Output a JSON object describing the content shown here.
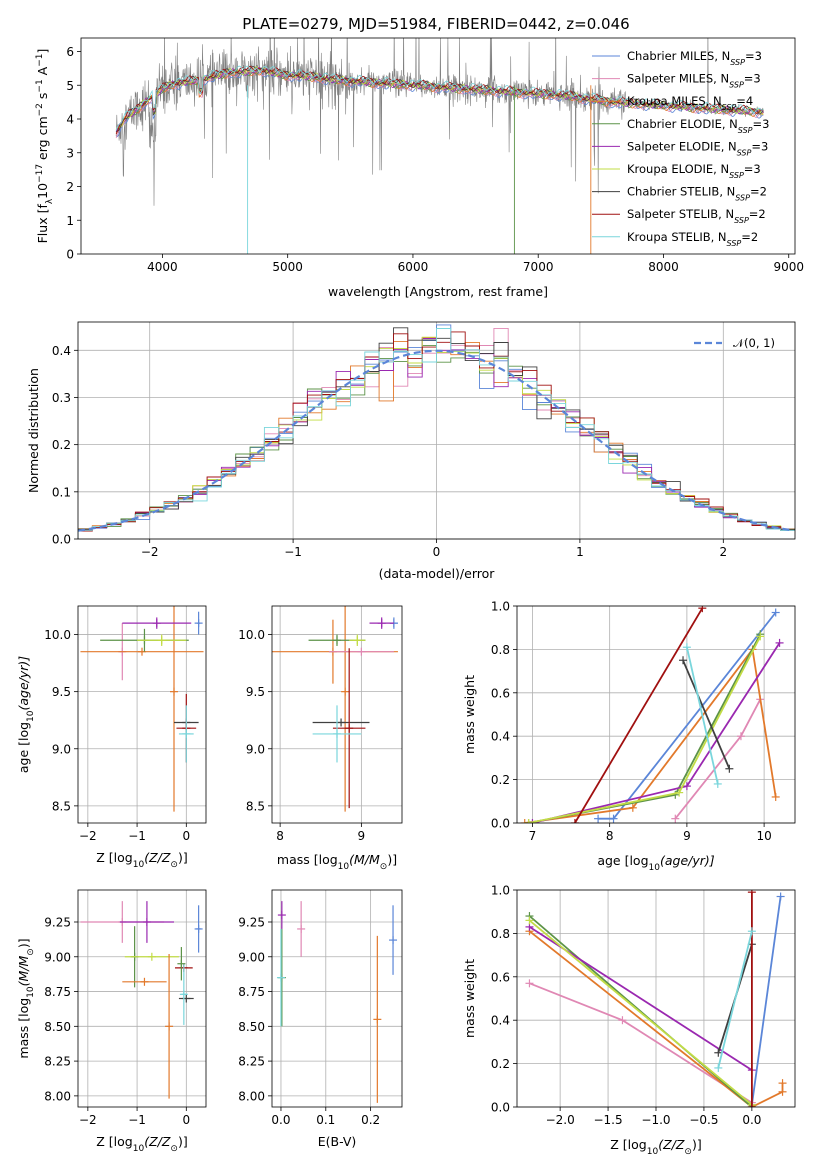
{
  "title": "PLATE=0279, MJD=51984, FIBERID=0442, z=0.046",
  "series": [
    {
      "name": "Chabrier MILES",
      "nssp": "3",
      "color": "#5b86d8"
    },
    {
      "name": "Salpeter MILES",
      "nssp": "3",
      "color": "#e088b4"
    },
    {
      "name": "Kroupa MILES",
      "nssp": "4",
      "color": "#e2792b"
    },
    {
      "name": "Chabrier ELODIE",
      "nssp": "3",
      "color": "#5c9348"
    },
    {
      "name": "Salpeter ELODIE",
      "nssp": "3",
      "color": "#9a28b0"
    },
    {
      "name": "Kroupa ELODIE",
      "nssp": "3",
      "color": "#c2dc46"
    },
    {
      "name": "Chabrier STELIB",
      "nssp": "2",
      "color": "#404040"
    },
    {
      "name": "Salpeter STELIB",
      "nssp": "2",
      "color": "#a01010"
    },
    {
      "name": "Kroupa STELIB",
      "nssp": "2",
      "color": "#7ad6dc"
    }
  ],
  "chart_data": [
    {
      "id": "spectrum",
      "type": "line",
      "xlabel": "wavelength [Angstrom, rest frame]",
      "ylabel_parts": [
        "Flux [f",
        "λ",
        "10",
        "−17",
        " erg cm",
        "−2",
        " s",
        "−1",
        " A",
        "−1",
        "]"
      ],
      "xlim": [
        3350,
        9050
      ],
      "ylim": [
        0,
        6.4
      ],
      "xticks": [
        4000,
        5000,
        6000,
        7000,
        8000,
        9000
      ],
      "yticks": [
        0,
        1,
        2,
        3,
        4,
        5,
        6
      ],
      "data_color": "#808080",
      "continuum_knots": [
        [
          3630,
          3.6
        ],
        [
          3700,
          4.0
        ],
        [
          3800,
          4.3
        ],
        [
          3900,
          4.6
        ],
        [
          4000,
          4.9
        ],
        [
          4100,
          5.05
        ],
        [
          4200,
          5.1
        ],
        [
          4300,
          5.15
        ],
        [
          4400,
          5.25
        ],
        [
          4500,
          5.35
        ],
        [
          4600,
          5.4
        ],
        [
          4700,
          5.4
        ],
        [
          4800,
          5.45
        ],
        [
          4900,
          5.35
        ],
        [
          5000,
          5.3
        ],
        [
          5200,
          5.25
        ],
        [
          5400,
          5.15
        ],
        [
          5600,
          5.1
        ],
        [
          5800,
          5.05
        ],
        [
          6000,
          5.0
        ],
        [
          6200,
          4.95
        ],
        [
          6400,
          4.9
        ],
        [
          6600,
          4.85
        ],
        [
          6800,
          4.8
        ],
        [
          7000,
          4.75
        ],
        [
          7200,
          4.7
        ],
        [
          7400,
          4.6
        ],
        [
          7600,
          4.5
        ],
        [
          7800,
          4.45
        ],
        [
          8000,
          4.4
        ],
        [
          8200,
          4.35
        ],
        [
          8400,
          4.3
        ],
        [
          8600,
          4.25
        ],
        [
          8800,
          4.2
        ]
      ]
    },
    {
      "id": "residuals",
      "type": "histogram",
      "xlabel": "(data-model)/error",
      "ylabel": "Normed distribution",
      "xlim": [
        -2.5,
        2.5
      ],
      "ylim": [
        0,
        0.46
      ],
      "xticks": [
        -2,
        -1,
        0,
        1,
        2
      ],
      "yticks": [
        0.0,
        0.1,
        0.2,
        0.3,
        0.4
      ],
      "legend_label": "𝒩(0, 1)",
      "legend_placement": "top-right",
      "gaussian_color": "#5b86d8",
      "grid": true
    },
    {
      "id": "age_vs_Z",
      "type": "errorbar",
      "xlabel_parts": [
        "Z [log",
        "10",
        "(Z/Z",
        "⊙",
        ")]"
      ],
      "ylabel_parts": [
        "age  [log",
        "10",
        "(age/yr)]"
      ],
      "xlim": [
        -2.2,
        0.4
      ],
      "ylim": [
        8.35,
        10.25
      ],
      "xticks": [
        -2,
        -1,
        0
      ],
      "yticks": [
        8.5,
        9.0,
        9.5,
        10.0
      ],
      "grid": true,
      "points": [
        {
          "s": 0,
          "x": 0.25,
          "y": 10.1,
          "xerr": 0.03,
          "yerr": 0.1
        },
        {
          "s": 1,
          "x": -1.3,
          "y": 9.85,
          "xerr": 0.05,
          "yerr": 0.25
        },
        {
          "s": 2,
          "x": -0.9,
          "y": 9.85,
          "xerr": 1.25,
          "yerr": 0.0
        },
        {
          "s": 2,
          "x": -0.25,
          "y": 9.5,
          "xerr": 0.0,
          "yerr": 1.05
        },
        {
          "s": 3,
          "x": -0.85,
          "y": 9.95,
          "xerr": 0.9,
          "yerr": 0.1
        },
        {
          "s": 4,
          "x": -0.6,
          "y": 10.1,
          "xerr": 0.7,
          "yerr": 0.05
        },
        {
          "s": 5,
          "x": -0.5,
          "y": 9.95,
          "xerr": 0.5,
          "yerr": 0.05
        },
        {
          "s": 6,
          "x": 0.0,
          "y": 9.23,
          "xerr": 0.25,
          "yerr": 0.0
        },
        {
          "s": 7,
          "x": 0.0,
          "y": 9.18,
          "xerr": 0.2,
          "yerr": 0.3
        },
        {
          "s": 8,
          "x": 0.0,
          "y": 9.13,
          "xerr": 0.15,
          "yerr": 0.25
        }
      ]
    },
    {
      "id": "age_vs_mass",
      "type": "errorbar",
      "xlabel_parts": [
        "mass [log",
        "10",
        "(M/M",
        "⊙",
        ")]"
      ],
      "xlim": [
        7.9,
        9.5
      ],
      "ylim": [
        8.35,
        10.25
      ],
      "xticks": [
        8,
        9
      ],
      "yticks": [
        8.5,
        9.0,
        9.5,
        10.0
      ],
      "grid": true,
      "points": [
        {
          "s": 0,
          "x": 9.4,
          "y": 10.1,
          "xerr": 0.05,
          "yerr": 0.05
        },
        {
          "s": 2,
          "x": 8.65,
          "y": 9.85,
          "xerr": 0.8,
          "yerr": 0.28
        },
        {
          "s": 2,
          "x": 8.8,
          "y": 9.5,
          "xerr": 0.0,
          "yerr": 1.05
        },
        {
          "s": 1,
          "x": 9.0,
          "y": 9.85,
          "xerr": 0.4,
          "yerr": 0.0
        },
        {
          "s": 3,
          "x": 8.7,
          "y": 9.95,
          "xerr": 0.35,
          "yerr": 0.05
        },
        {
          "s": 4,
          "x": 9.25,
          "y": 10.1,
          "xerr": 0.15,
          "yerr": 0.05
        },
        {
          "s": 5,
          "x": 8.95,
          "y": 9.95,
          "xerr": 0.1,
          "yerr": 0.05
        },
        {
          "s": 6,
          "x": 8.75,
          "y": 9.23,
          "xerr": 0.35,
          "yerr": 0.0
        },
        {
          "s": 7,
          "x": 8.85,
          "y": 9.18,
          "xerr": 0.2,
          "yerr": 0.7
        },
        {
          "s": 8,
          "x": 8.7,
          "y": 9.13,
          "xerr": 0.3,
          "yerr": 0.25
        }
      ]
    },
    {
      "id": "weight_vs_age",
      "type": "line",
      "xlabel_parts": [
        "age  [log",
        "10",
        "(age/yr)]"
      ],
      "ylabel": "mass weight",
      "xlim": [
        6.8,
        10.4
      ],
      "ylim": [
        0,
        1.0
      ],
      "xticks": [
        7,
        8,
        9,
        10
      ],
      "yticks": [
        0.0,
        0.2,
        0.4,
        0.6,
        0.8,
        1.0
      ],
      "grid": true,
      "lines": [
        {
          "s": 0,
          "x": [
            7.85,
            8.05,
            10.15
          ],
          "y": [
            0.02,
            0.02,
            0.97
          ]
        },
        {
          "s": 1,
          "x": [
            8.85,
            9.7,
            9.95
          ],
          "y": [
            0.02,
            0.4,
            0.57
          ]
        },
        {
          "s": 2,
          "x": [
            6.9,
            8.3,
            9.85,
            10.15
          ],
          "y": [
            0.0,
            0.07,
            0.8,
            0.12
          ]
        },
        {
          "s": 3,
          "x": [
            6.95,
            8.85,
            9.95
          ],
          "y": [
            0.0,
            0.13,
            0.87
          ]
        },
        {
          "s": 4,
          "x": [
            7.0,
            9.0,
            10.2
          ],
          "y": [
            0.0,
            0.17,
            0.83
          ]
        },
        {
          "s": 5,
          "x": [
            6.95,
            8.9,
            9.95
          ],
          "y": [
            0.0,
            0.14,
            0.86
          ]
        },
        {
          "s": 6,
          "x": [
            8.95,
            9.55
          ],
          "y": [
            0.75,
            0.25
          ]
        },
        {
          "s": 7,
          "x": [
            7.55,
            9.2
          ],
          "y": [
            0.0,
            0.99
          ]
        },
        {
          "s": 8,
          "x": [
            9.0,
            9.4
          ],
          "y": [
            0.81,
            0.18
          ]
        }
      ]
    },
    {
      "id": "mass_vs_Z",
      "type": "errorbar",
      "xlabel_parts": [
        "Z [log",
        "10",
        "(Z/Z",
        "⊙",
        ")]"
      ],
      "ylabel_parts": [
        "mass [log",
        "10",
        "(M/M",
        "⊙",
        ")]"
      ],
      "xlim": [
        -2.2,
        0.4
      ],
      "ylim": [
        7.92,
        9.48
      ],
      "xticks": [
        -2,
        -1,
        0
      ],
      "yticks": [
        8.0,
        8.25,
        8.5,
        8.75,
        9.0,
        9.25
      ],
      "grid": true,
      "points": [
        {
          "s": 0,
          "x": 0.25,
          "y": 9.2,
          "xerr": 0.05,
          "yerr": 0.17
        },
        {
          "s": 1,
          "x": -1.3,
          "y": 9.25,
          "xerr": 0.85,
          "yerr": 0.15
        },
        {
          "s": 4,
          "x": -0.8,
          "y": 9.25,
          "xerr": 0.55,
          "yerr": 0.15
        },
        {
          "s": 3,
          "x": -1.05,
          "y": 9.0,
          "xerr": 0.05,
          "yerr": 0.22
        },
        {
          "s": 5,
          "x": -0.7,
          "y": 9.0,
          "xerr": 0.55,
          "yerr": 0.0
        },
        {
          "s": 2,
          "x": -0.85,
          "y": 8.82,
          "xerr": 0.45,
          "yerr": 0.0
        },
        {
          "s": 2,
          "x": -0.35,
          "y": 8.5,
          "xerr": 0.0,
          "yerr": 0.52
        },
        {
          "s": 7,
          "x": -0.05,
          "y": 8.92,
          "xerr": 0.18,
          "yerr": 0.0
        },
        {
          "s": 6,
          "x": 0.0,
          "y": 8.7,
          "xerr": 0.15,
          "yerr": 0.0
        },
        {
          "s": 8,
          "x": -0.05,
          "y": 8.73,
          "xerr": 0.05,
          "yerr": 0.22
        },
        {
          "s": 3,
          "x": -0.1,
          "y": 8.95,
          "xerr": 0.0,
          "yerr": 0.12
        }
      ]
    },
    {
      "id": "mass_vs_ebv",
      "type": "errorbar",
      "xlabel": "E(B-V)",
      "xlim": [
        -0.02,
        0.27
      ],
      "ylim": [
        7.92,
        9.48
      ],
      "xticks": [
        0.0,
        0.1,
        0.2
      ],
      "yticks": [
        8.0,
        8.25,
        8.5,
        8.75,
        9.0,
        9.25
      ],
      "grid": true,
      "points": [
        {
          "s": 4,
          "x": 0.002,
          "y": 9.3,
          "xerr": 0.0,
          "yerr": 0.1
        },
        {
          "s": 1,
          "x": 0.045,
          "y": 9.2,
          "xerr": 0.0,
          "yerr": 0.2
        },
        {
          "s": 0,
          "x": 0.25,
          "y": 9.12,
          "xerr": 0.0,
          "yerr": 0.25
        },
        {
          "s": 2,
          "x": 0.215,
          "y": 8.55,
          "xerr": 0.0,
          "yerr": 0.6
        },
        {
          "s": 3,
          "x": 0.002,
          "y": 8.85,
          "xerr": 0.0,
          "yerr": 0.35
        },
        {
          "s": 8,
          "x": 0.0,
          "y": 8.85,
          "xerr": 0.0,
          "yerr": 0.35
        }
      ]
    },
    {
      "id": "weight_vs_Z",
      "type": "line",
      "xlabel_parts": [
        "Z [log",
        "10",
        "(Z/Z",
        "⊙",
        ")]"
      ],
      "ylabel": "mass weight",
      "xlim": [
        -2.45,
        0.45
      ],
      "ylim": [
        0,
        1.0
      ],
      "xticks": [
        -2.0,
        -1.5,
        -1.0,
        -0.5,
        0.0
      ],
      "yticks": [
        0.0,
        0.2,
        0.4,
        0.6,
        0.8,
        1.0
      ],
      "grid": true,
      "lines": [
        {
          "s": 0,
          "x": [
            0.0,
            0.3
          ],
          "y": [
            0.01,
            0.97
          ]
        },
        {
          "s": 1,
          "x": [
            -2.32,
            -1.35,
            0.0
          ],
          "y": [
            0.57,
            0.4,
            0.02
          ]
        },
        {
          "s": 2,
          "x": [
            -2.32,
            0.0,
            0.32,
            0.32
          ],
          "y": [
            0.81,
            0.0,
            0.07,
            0.11
          ]
        },
        {
          "s": 3,
          "x": [
            -2.32,
            0.0
          ],
          "y": [
            0.88,
            0.0
          ]
        },
        {
          "s": 4,
          "x": [
            -2.32,
            0.0
          ],
          "y": [
            0.83,
            0.17
          ]
        },
        {
          "s": 5,
          "x": [
            -2.32,
            0.0
          ],
          "y": [
            0.86,
            0.01
          ]
        },
        {
          "s": 6,
          "x": [
            -0.35,
            0.0
          ],
          "y": [
            0.25,
            0.75
          ]
        },
        {
          "s": 7,
          "x": [
            0.0,
            0.0
          ],
          "y": [
            0.0,
            0.99
          ]
        },
        {
          "s": 8,
          "x": [
            -0.35,
            0.0
          ],
          "y": [
            0.18,
            0.81
          ]
        }
      ]
    }
  ]
}
